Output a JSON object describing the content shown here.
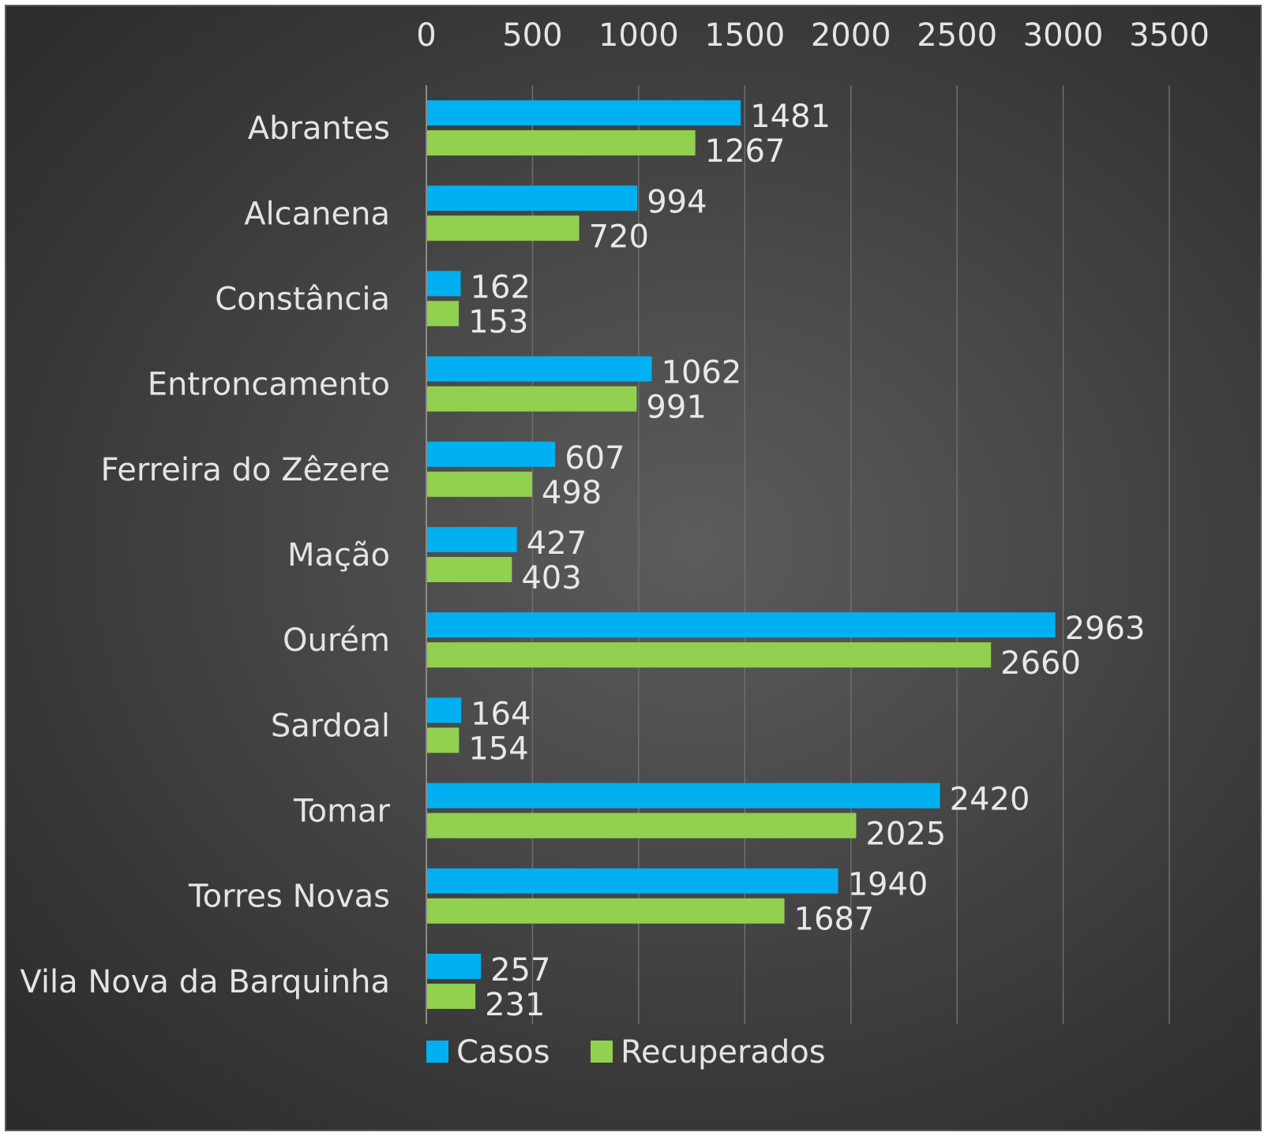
{
  "chart_data": {
    "type": "bar",
    "orientation": "horizontal",
    "title": "",
    "xlabel": "",
    "ylabel": "",
    "categories": [
      "Abrantes",
      "Alcanena",
      "Constância",
      "Entroncamento",
      "Ferreira do Zêzere",
      "Mação",
      "Ourém",
      "Sardoal",
      "Tomar",
      "Torres Novas",
      "Vila Nova da Barquinha"
    ],
    "series": [
      {
        "name": "Casos",
        "color": "#00b0f0",
        "values": [
          1481,
          994,
          162,
          1062,
          607,
          427,
          2963,
          164,
          2420,
          1940,
          257
        ]
      },
      {
        "name": "Recuperados",
        "color": "#92d050",
        "values": [
          1267,
          720,
          153,
          991,
          498,
          403,
          2660,
          154,
          2025,
          1687,
          231
        ]
      }
    ],
    "xlim": [
      0,
      3500
    ],
    "xticks": [
      "0",
      "500",
      "1000",
      "1500",
      "2000",
      "2500",
      "3000",
      "3500"
    ],
    "xaxis_position": "top",
    "grid": true,
    "legend_position": "bottom",
    "data_labels": true
  }
}
